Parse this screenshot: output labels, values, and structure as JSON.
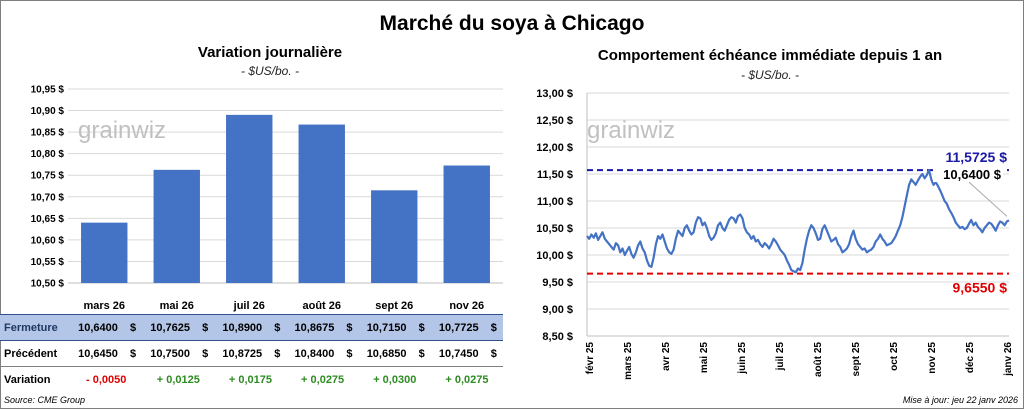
{
  "title": "Marché du soya à Chicago",
  "left_panel": {
    "title": "Variation journalière",
    "unit": "- $US/bo. -",
    "watermark": "grainwiz"
  },
  "right_panel": {
    "title": "Comportement échéance immédiate depuis 1 an",
    "unit": "- $US/bo. -",
    "watermark": "grainwiz"
  },
  "table": {
    "rows": [
      {
        "label": "Fermeture",
        "values": [
          "10,6400",
          "10,7625",
          "10,8900",
          "10,8675",
          "10,7150",
          "10,7725"
        ],
        "currency": "$"
      },
      {
        "label": "Précédent",
        "values": [
          "10,6450",
          "10,7500",
          "10,8725",
          "10,8400",
          "10,6850",
          "10,7450"
        ],
        "currency": "$"
      },
      {
        "label": "Variation",
        "values": [
          "- 0,0050",
          "+ 0,0125",
          "+ 0,0175",
          "+ 0,0275",
          "+ 0,0300",
          "+ 0,0275"
        ],
        "signs": [
          "neg",
          "pos",
          "pos",
          "pos",
          "pos",
          "pos"
        ]
      }
    ]
  },
  "footer": {
    "source": "Source: CME Group",
    "updated": "Mise à jour: jeu 22 janv 2026"
  },
  "colors": {
    "bar": "#4472c4",
    "line": "#4472c4",
    "high_line": "#1a1aa6",
    "low_line": "#e00000",
    "grid": "#d9d9d9",
    "close_row_bg": "#b4c6e7"
  },
  "chart_data": [
    {
      "type": "bar",
      "title": "Variation journalière",
      "categories": [
        "mars 26",
        "mai 26",
        "juil 26",
        "août 26",
        "sept 26",
        "nov 26"
      ],
      "values": [
        10.64,
        10.7625,
        10.89,
        10.8675,
        10.715,
        10.7725
      ],
      "ylim": [
        10.5,
        10.95
      ],
      "yticks": [
        "10,50 $",
        "10,55 $",
        "10,60 $",
        "10,65 $",
        "10,70 $",
        "10,75 $",
        "10,80 $",
        "10,85 $",
        "10,90 $",
        "10,95 $"
      ],
      "grid": true
    },
    {
      "type": "line",
      "title": "Comportement échéance immédiate depuis 1 an",
      "xticks": [
        "févr 25",
        "mars 25",
        "avr 25",
        "mai 25",
        "juin 25",
        "juil 25",
        "août 25",
        "sept 25",
        "oct 25",
        "nov 25",
        "déc 25",
        "janv 26"
      ],
      "yticks": [
        "8,50 $",
        "9,00 $",
        "9,50 $",
        "10,00 $",
        "10,50 $",
        "11,00 $",
        "11,50 $",
        "12,00 $",
        "12,50 $",
        "13,00 $"
      ],
      "ylim": [
        8.5,
        13.0
      ],
      "series": [
        {
          "values": [
            10.35,
            10.3,
            10.38,
            10.32,
            10.4,
            10.28,
            10.35,
            10.42,
            10.3,
            10.25,
            10.2,
            10.15,
            10.1,
            10.22,
            10.18,
            10.05,
            10.12,
            10.0,
            10.08,
            10.15,
            10.02,
            9.95,
            10.05,
            10.18,
            10.25,
            10.12,
            10.05,
            9.9,
            9.8,
            9.78,
            9.95,
            10.2,
            10.35,
            10.3,
            10.38,
            10.25,
            10.12,
            10.05,
            10.02,
            10.1,
            10.3,
            10.45,
            10.4,
            10.35,
            10.5,
            10.55,
            10.45,
            10.38,
            10.42,
            10.6,
            10.7,
            10.68,
            10.55,
            10.6,
            10.5,
            10.35,
            10.28,
            10.32,
            10.4,
            10.55,
            10.6,
            10.5,
            10.45,
            10.55,
            10.65,
            10.7,
            10.68,
            10.6,
            10.72,
            10.75,
            10.68,
            10.5,
            10.42,
            10.38,
            10.3,
            10.35,
            10.25,
            10.28,
            10.2,
            10.15,
            10.22,
            10.18,
            10.12,
            10.2,
            10.3,
            10.25,
            10.18,
            10.1,
            10.05,
            10.0,
            9.9,
            9.82,
            9.72,
            9.7,
            9.68,
            9.75,
            9.72,
            9.85,
            10.1,
            10.3,
            10.45,
            10.55,
            10.5,
            10.4,
            10.28,
            10.3,
            10.48,
            10.55,
            10.45,
            10.35,
            10.25,
            10.28,
            10.32,
            10.2,
            10.15,
            10.05,
            10.08,
            10.12,
            10.2,
            10.35,
            10.45,
            10.3,
            10.2,
            10.15,
            10.1,
            10.12,
            10.05,
            10.08,
            10.1,
            10.15,
            10.25,
            10.3,
            10.38,
            10.3,
            10.25,
            10.18,
            10.2,
            10.22,
            10.28,
            10.35,
            10.45,
            10.55,
            10.7,
            10.9,
            11.1,
            11.3,
            11.4,
            11.35,
            11.3,
            11.38,
            11.45,
            11.5,
            11.42,
            11.48,
            11.5725,
            11.4,
            11.3,
            11.35,
            11.28,
            11.2,
            11.1,
            11.0,
            10.95,
            10.85,
            10.78,
            10.7,
            10.6,
            10.55,
            10.5,
            10.52,
            10.48,
            10.5,
            10.58,
            10.65,
            10.55,
            10.6,
            10.52,
            10.48,
            10.42,
            10.5,
            10.55,
            10.6,
            10.58,
            10.52,
            10.45,
            10.55,
            10.62,
            10.6,
            10.55,
            10.62,
            10.64
          ]
        }
      ],
      "reference_lines": [
        {
          "label": "11,5725 $",
          "value": 11.5725,
          "color": "#1a1aa6"
        },
        {
          "label": "9,6550 $",
          "value": 9.655,
          "color": "#e00000"
        }
      ],
      "current_label": "10,6400 $",
      "current_value": 10.64,
      "grid": true
    }
  ]
}
